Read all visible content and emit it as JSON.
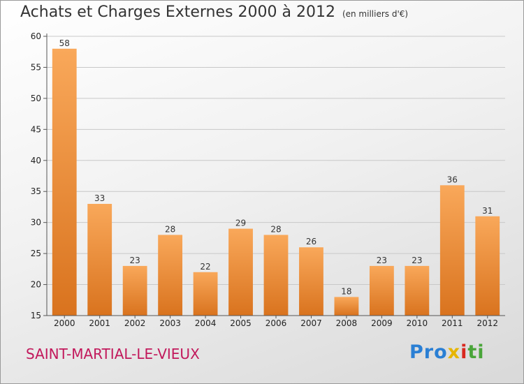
{
  "header": {
    "title": "Achats et Charges Externes 2000 à 2012",
    "unit": "(en milliers d'€)"
  },
  "footer": {
    "commune": "SAINT-MARTIAL-LE-VIEUX",
    "brand": [
      "Pro",
      "x",
      "i",
      "ti"
    ]
  },
  "colors": {
    "bar_light": "#f9a85a",
    "bar_dark": "#d9731e",
    "commune_text": "#c2185b"
  },
  "chart_data": {
    "type": "bar",
    "title": "Achats et Charges Externes 2000 à 2012",
    "subtitle": "(en milliers d'€)",
    "xlabel": "",
    "ylabel": "",
    "categories": [
      "2000",
      "2001",
      "2002",
      "2003",
      "2004",
      "2005",
      "2006",
      "2007",
      "2008",
      "2009",
      "2010",
      "2011",
      "2012"
    ],
    "values": [
      58,
      33,
      23,
      28,
      22,
      29,
      28,
      26,
      18,
      23,
      23,
      36,
      31
    ],
    "ylim": [
      15,
      60
    ],
    "yticks": [
      15,
      20,
      25,
      30,
      35,
      40,
      45,
      50,
      55,
      60
    ],
    "grid": true
  }
}
